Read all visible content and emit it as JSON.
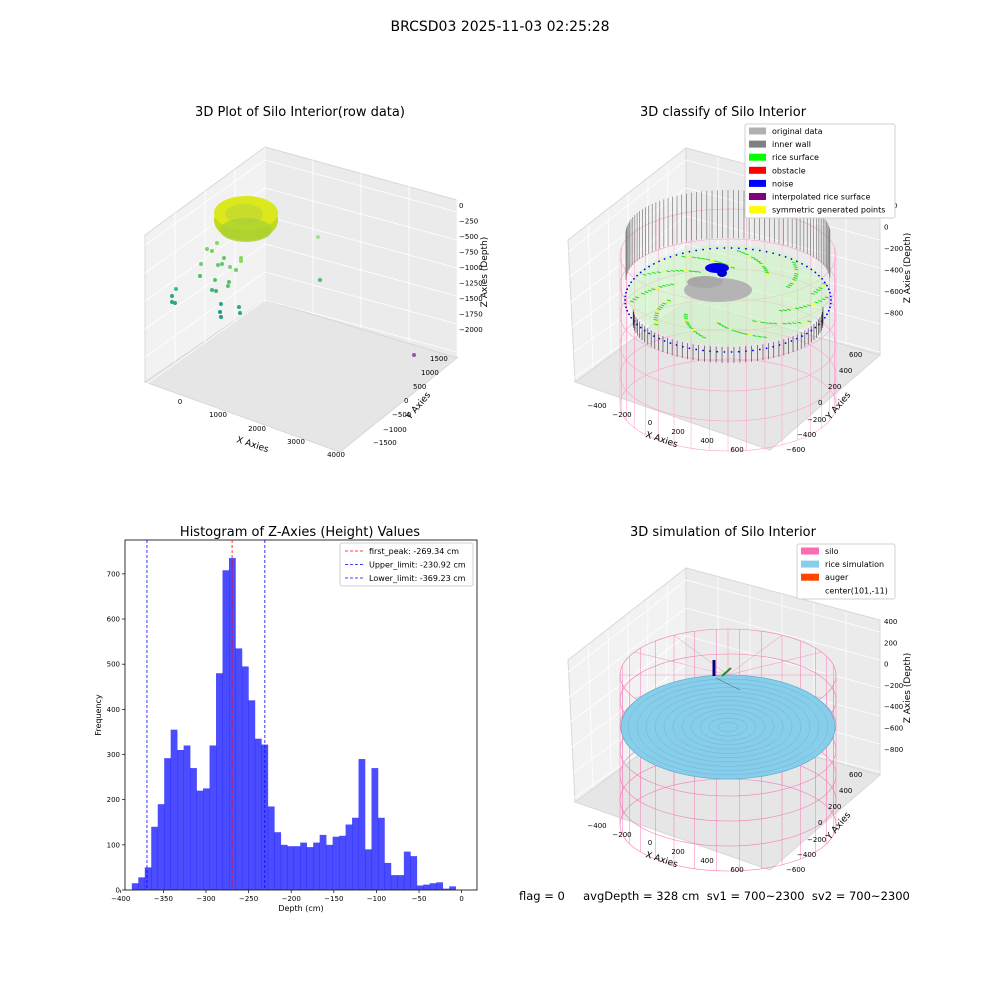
{
  "figure": {
    "suptitle": "BRCSD03 2025-11-03 02:25:28",
    "status_text": "flag = 0     avgDepth = 328 cm  sv1 = 700~2300  sv2 = 700~2300"
  },
  "chart_data": [
    {
      "type": "scatter",
      "title": "3D Plot of Silo Interior(row data)",
      "xlabel": "X Axies",
      "ylabel": "Y Axies",
      "zlabel": "Z Axies (Depth)",
      "xticks": [
        "0",
        "1000",
        "2000",
        "3000",
        "4000"
      ],
      "yticks": [
        "−1500",
        "−1000",
        "−500",
        "0",
        "500",
        "1000",
        "1500"
      ],
      "zticks": [
        "0",
        "−250",
        "−500",
        "−750",
        "−1000",
        "−1250",
        "−1500",
        "−1750",
        "−2000"
      ],
      "xlim": [
        -400,
        4100
      ],
      "ylim": [
        -1700,
        1700
      ],
      "zlim": [
        -2100,
        100
      ],
      "series": [
        {
          "values": [
            {
              "x": -250,
              "y": 200,
              "z": -1000
            },
            {
              "x": 200,
              "y": 150,
              "z": -750
            },
            {
              "x": 300,
              "y": 250,
              "z": -900
            },
            {
              "x": 0,
              "y": -100,
              "z": -1250
            },
            {
              "x": 400,
              "y": 100,
              "z": -1100
            },
            {
              "x": 500,
              "y": 300,
              "z": -1300
            },
            {
              "x": 100,
              "y": -200,
              "z": -1400
            },
            {
              "x": 600,
              "y": -100,
              "z": -1500
            },
            {
              "x": 3000,
              "y": 200,
              "z": -300
            },
            {
              "x": 3000,
              "y": -300,
              "z": -1000
            },
            {
              "x": 3600,
              "y": 1600,
              "z": -2000
            }
          ]
        }
      ]
    },
    {
      "type": "scatter",
      "title": "3D classify of Silo Interior",
      "xlabel": "X Axies",
      "ylabel": "Y Axies",
      "zlabel": "Z Axies (Depth)",
      "xticks": [
        "−400",
        "−200",
        "0",
        "200",
        "400",
        "600"
      ],
      "yticks": [
        "−600",
        "−400",
        "−200",
        "0",
        "200",
        "400",
        "600"
      ],
      "zticks": [
        "200",
        "0",
        "−200",
        "−400",
        "−600",
        "−800"
      ],
      "xlim": [
        -550,
        750
      ],
      "ylim": [
        -650,
        650
      ],
      "zlim": [
        -900,
        300
      ],
      "legend_position": "top-right",
      "series": [
        {
          "name": "original data",
          "color": "#b0b0b0"
        },
        {
          "name": "inner wall",
          "color": "#808080"
        },
        {
          "name": "rice surface",
          "color": "#00ff00"
        },
        {
          "name": "obstacle",
          "color": "#ff0000"
        },
        {
          "name": "noise",
          "color": "#0000ff"
        },
        {
          "name": "interpolated rice surface",
          "color": "#800080"
        },
        {
          "name": "symmetric generated points",
          "color": "#ffff00"
        }
      ]
    },
    {
      "type": "bar",
      "title": "Histogram of Z-Axies (Height) Values",
      "xlabel": "Depth (cm)",
      "ylabel": "Frequency",
      "xlim": [
        -395,
        18
      ],
      "ylim": [
        0,
        775
      ],
      "xticks": [
        -400,
        -350,
        -300,
        -250,
        -200,
        -150,
        -100,
        -50,
        0
      ],
      "yticks": [
        0,
        100,
        200,
        300,
        400,
        500,
        600,
        700
      ],
      "bin_start": -387,
      "bin_width": 7.6,
      "values": [
        15,
        28,
        50,
        140,
        190,
        292,
        355,
        310,
        320,
        270,
        220,
        225,
        320,
        480,
        708,
        735,
        535,
        495,
        420,
        335,
        322,
        185,
        128,
        100,
        97,
        97,
        105,
        95,
        105,
        122,
        100,
        118,
        120,
        145,
        160,
        290,
        90,
        270,
        160,
        60,
        33,
        33,
        85,
        75,
        10,
        12,
        15,
        17,
        3,
        8
      ],
      "bar_color": "#0000ff",
      "legend_position": "top-right",
      "lines": [
        {
          "name": "first_peak: -269.34 cm",
          "x": -269.34,
          "color": "#ff0000"
        },
        {
          "name": "Upper_limit: -230.92 cm",
          "x": -230.92,
          "color": "#0000ff"
        },
        {
          "name": "Lower_limit: -369.23 cm",
          "x": -369.23,
          "color": "#0000ff"
        }
      ]
    },
    {
      "type": "scatter",
      "title": "3D simulation of Silo Interior",
      "xlabel": "X Axies",
      "ylabel": "Y Axies",
      "zlabel": "Z Axies (Depth)",
      "xticks": [
        "−400",
        "−200",
        "0",
        "200",
        "400",
        "600"
      ],
      "yticks": [
        "−600",
        "−400",
        "−200",
        "0",
        "200",
        "400",
        "600"
      ],
      "zticks": [
        "400",
        "200",
        "0",
        "−200",
        "−400",
        "−600",
        "−800"
      ],
      "xlim": [
        -550,
        750
      ],
      "ylim": [
        -650,
        650
      ],
      "zlim": [
        -900,
        500
      ],
      "legend_position": "top-right",
      "series": [
        {
          "name": "silo",
          "color": "#ff69b4"
        },
        {
          "name": "rice simulation",
          "color": "#87ceeb"
        },
        {
          "name": "auger",
          "color": "#ff4500"
        },
        {
          "name": "center(101,-11)",
          "color": "#ffffff"
        }
      ]
    }
  ]
}
